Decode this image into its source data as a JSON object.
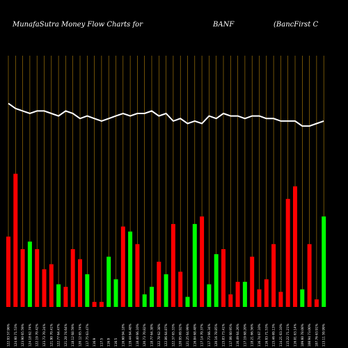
{
  "header": {
    "left": "MunafaSutra  Money Flow  Charts for",
    "symbol": "BANF",
    "company": "(BancFirst C"
  },
  "chart_data": {
    "type": "bar",
    "ylim": [
      0,
      100
    ],
    "grid": true,
    "colors": {
      "up": "#00ff00",
      "down": "#ff0000",
      "line": "#ffffff",
      "grid": "#b8860b"
    },
    "categories": [
      "122.93 57.96%",
      "124.60 71.53%",
      "123.90 65.59%",
      "124.18 62.74%",
      "122.19 70.42%",
      "123.73 70.24%",
      "121.90 70.41%",
      "122.77 64.47%",
      "121.28 74.64%",
      "118.12 68.59%",
      "120.12 65.74%",
      "117.75 63.47%",
      "116.9",
      "117.5",
      "116.9",
      "116.5",
      "116.60 94.18%",
      "119.44 64.48%",
      "118.40 66.10%",
      "120.73 70.82%",
      "118.77 64.38%",
      "122.78 62.38%",
      "122.86 64.87%",
      "122.37 65.33%",
      "120.95 69.92%",
      "121.25 64.99%",
      "116.84 68.48%",
      "117.14 70.37%",
      "117.73 66.34%",
      "120.16 78.85%",
      "115.83 73.41%",
      "117.06 60.95%",
      "116.49 64.26%",
      "117.19 68.20%",
      "118.21 66.56%",
      "116.74 67.10%",
      "116.93 71.53%",
      "115.46 69.13%",
      "114.21 63.10%",
      "115.22 71.21%",
      "116.01 63.14%",
      "109.60 78.08%",
      "108.94 73.00%",
      "107.76 63.91%",
      "113.11 59.99%"
    ],
    "bar_colors": [
      "down",
      "down",
      "down",
      "up",
      "down",
      "down",
      "down",
      "up",
      "down",
      "down",
      "down",
      "up",
      "down",
      "down",
      "up",
      "up",
      "down",
      "up",
      "down",
      "up",
      "up",
      "down",
      "up",
      "down",
      "down",
      "up",
      "up",
      "down",
      "up",
      "up",
      "down",
      "down",
      "down",
      "up",
      "down",
      "down",
      "down",
      "down",
      "down",
      "down",
      "down",
      "up",
      "down",
      "down",
      "up"
    ],
    "values": [
      28,
      53,
      23,
      26,
      23,
      15,
      17,
      9,
      8,
      23,
      19,
      13,
      2,
      2,
      20,
      11,
      32,
      30,
      25,
      5,
      8,
      18,
      13,
      33,
      14,
      4,
      33,
      36,
      9,
      21,
      23,
      5,
      10,
      10,
      20,
      7,
      11,
      25,
      6,
      43,
      48,
      7,
      25,
      3,
      36
    ],
    "line": [
      81,
      79,
      78,
      77,
      78,
      78,
      77,
      76,
      78,
      77,
      75,
      76,
      75,
      74,
      75,
      76,
      77,
      76,
      77,
      77,
      78,
      76,
      77,
      74,
      75,
      73,
      74,
      73,
      76,
      75,
      77,
      76,
      76,
      75,
      76,
      76,
      75,
      75,
      74,
      74,
      74,
      72,
      72,
      73,
      74
    ]
  }
}
